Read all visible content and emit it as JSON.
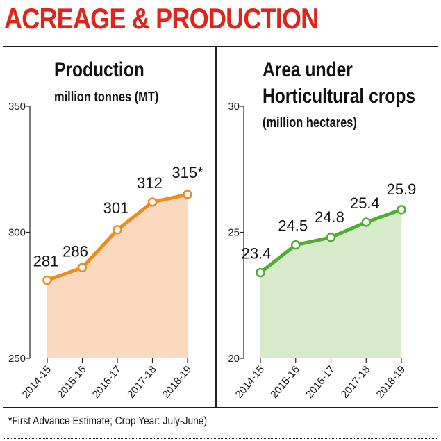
{
  "title": "ACREAGE & PRODUCTION",
  "footnote": "*First Advance Estimate; Crop Year: July-June)",
  "colors": {
    "title": "#e0231b",
    "production_line": "#ef8a1c",
    "production_fill": "#fbd9bf",
    "area_line": "#4fae32",
    "area_fill": "#d7ebcb"
  },
  "chart_data": [
    {
      "type": "area",
      "title": "Production",
      "subtitle": "million tonnes (MT)",
      "categories": [
        "2014-15",
        "2015-16",
        "2016-17",
        "2017-18",
        "2018-19"
      ],
      "values": [
        281,
        286,
        301,
        312,
        315
      ],
      "data_labels": [
        "281",
        "286",
        "301",
        "312",
        "315*"
      ],
      "yticks": [
        "250",
        "300",
        "350"
      ],
      "ylim": [
        250,
        350
      ],
      "grid": false
    },
    {
      "type": "area",
      "title_lines": [
        "Area under",
        "Horticultural crops"
      ],
      "subtitle": "(million hectares)",
      "categories": [
        "2014-15",
        "2015-16",
        "2016-17",
        "2017-18",
        "2018-19"
      ],
      "values": [
        23.4,
        24.5,
        24.8,
        25.4,
        25.9
      ],
      "data_labels": [
        "23.4",
        "24.5",
        "24.8",
        "25.4",
        "25.9"
      ],
      "yticks": [
        "20",
        "25",
        "30"
      ],
      "ylim": [
        20,
        30
      ],
      "grid": false
    }
  ]
}
